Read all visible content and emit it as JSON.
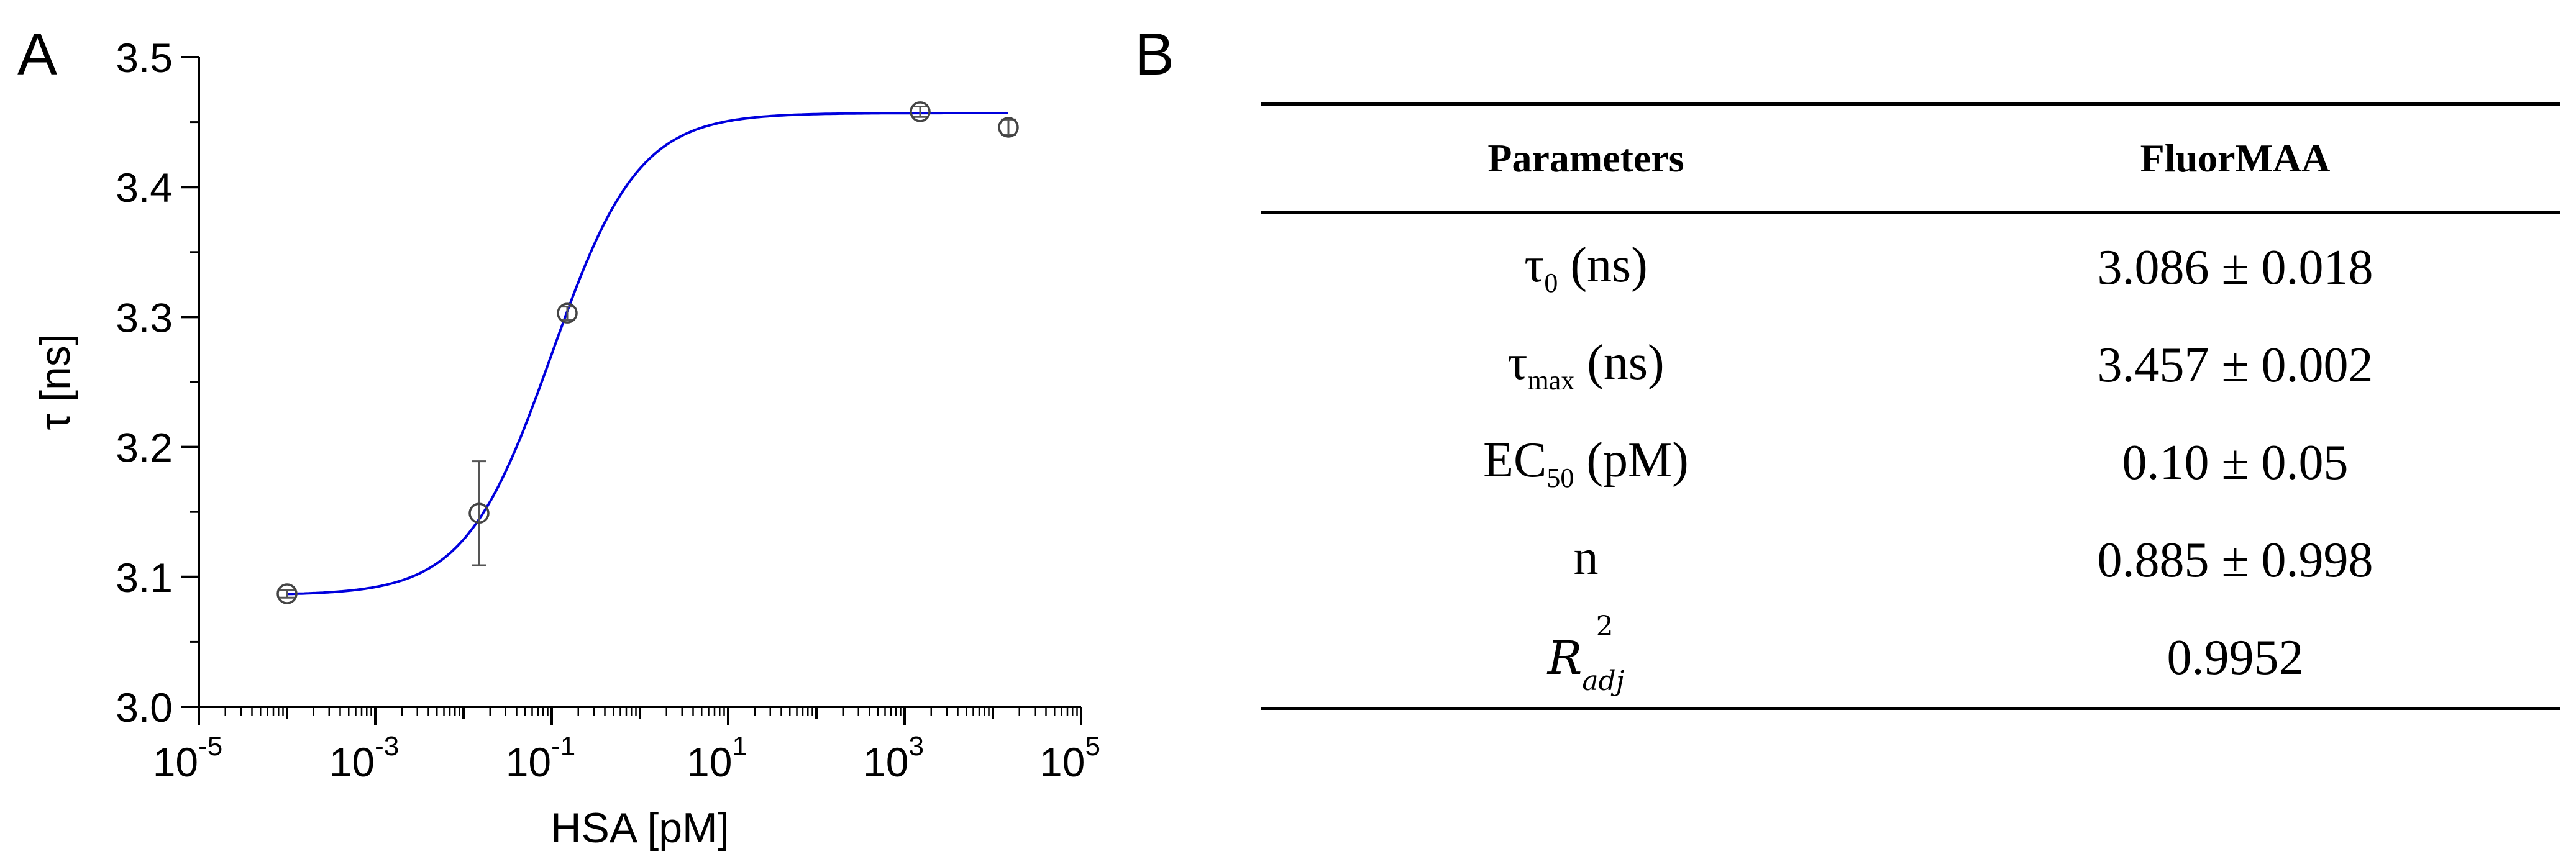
{
  "panels": {
    "a_letter": "A",
    "b_letter": "B"
  },
  "chart_data": {
    "type": "scatter",
    "xlabel": "HSA [pM]",
    "ylabel": "τ [ns]",
    "xscale": "log",
    "xlim": [
      1e-05,
      100000
    ],
    "ylim": [
      3.0,
      3.5
    ],
    "yticks": [
      "3.0",
      "3.1",
      "3.2",
      "3.3",
      "3.4",
      "3.5"
    ],
    "xtick_bases": [
      "10",
      "10",
      "10",
      "10",
      "10",
      "10"
    ],
    "xtick_exps": [
      "-5",
      "-3",
      "-1",
      "1",
      "3",
      "5"
    ],
    "grid": false,
    "series": [
      {
        "points": [
          {
            "x": 0.0001,
            "y": 3.087,
            "err": 0.003
          },
          {
            "x": 0.015,
            "y": 3.149,
            "err": 0.04
          },
          {
            "x": 0.15,
            "y": 3.303,
            "err": 0.005
          },
          {
            "x": 1500,
            "y": 3.458,
            "err": 0.004
          },
          {
            "x": 15000,
            "y": 3.446,
            "err": 0.006
          }
        ],
        "marker_color": "#444444"
      }
    ],
    "fit": {
      "tau0": 3.086,
      "taumax": 3.457,
      "ec50": 0.1,
      "n": 0.885,
      "color": "#0000dd"
    }
  },
  "table": {
    "headers": [
      "Parameters",
      "FluorMAA"
    ],
    "rows": [
      {
        "param": "τ",
        "param_sub": "0",
        "param_unit": " (ns)",
        "value": "3.086 ± 0.018"
      },
      {
        "param": "τ",
        "param_sub": "max",
        "param_unit": " (ns)",
        "value": "3.457 ± 0.002"
      },
      {
        "param": "EC",
        "param_sub": "50",
        "param_unit": " (pM)",
        "value": "0.10 ± 0.05"
      },
      {
        "param": "n",
        "param_sub": "",
        "param_unit": "",
        "value": "0.885 ± 0.998"
      }
    ],
    "rsq_row": {
      "symbol": "R",
      "sup": "2",
      "sub": "adj",
      "value": "0.9952"
    }
  }
}
